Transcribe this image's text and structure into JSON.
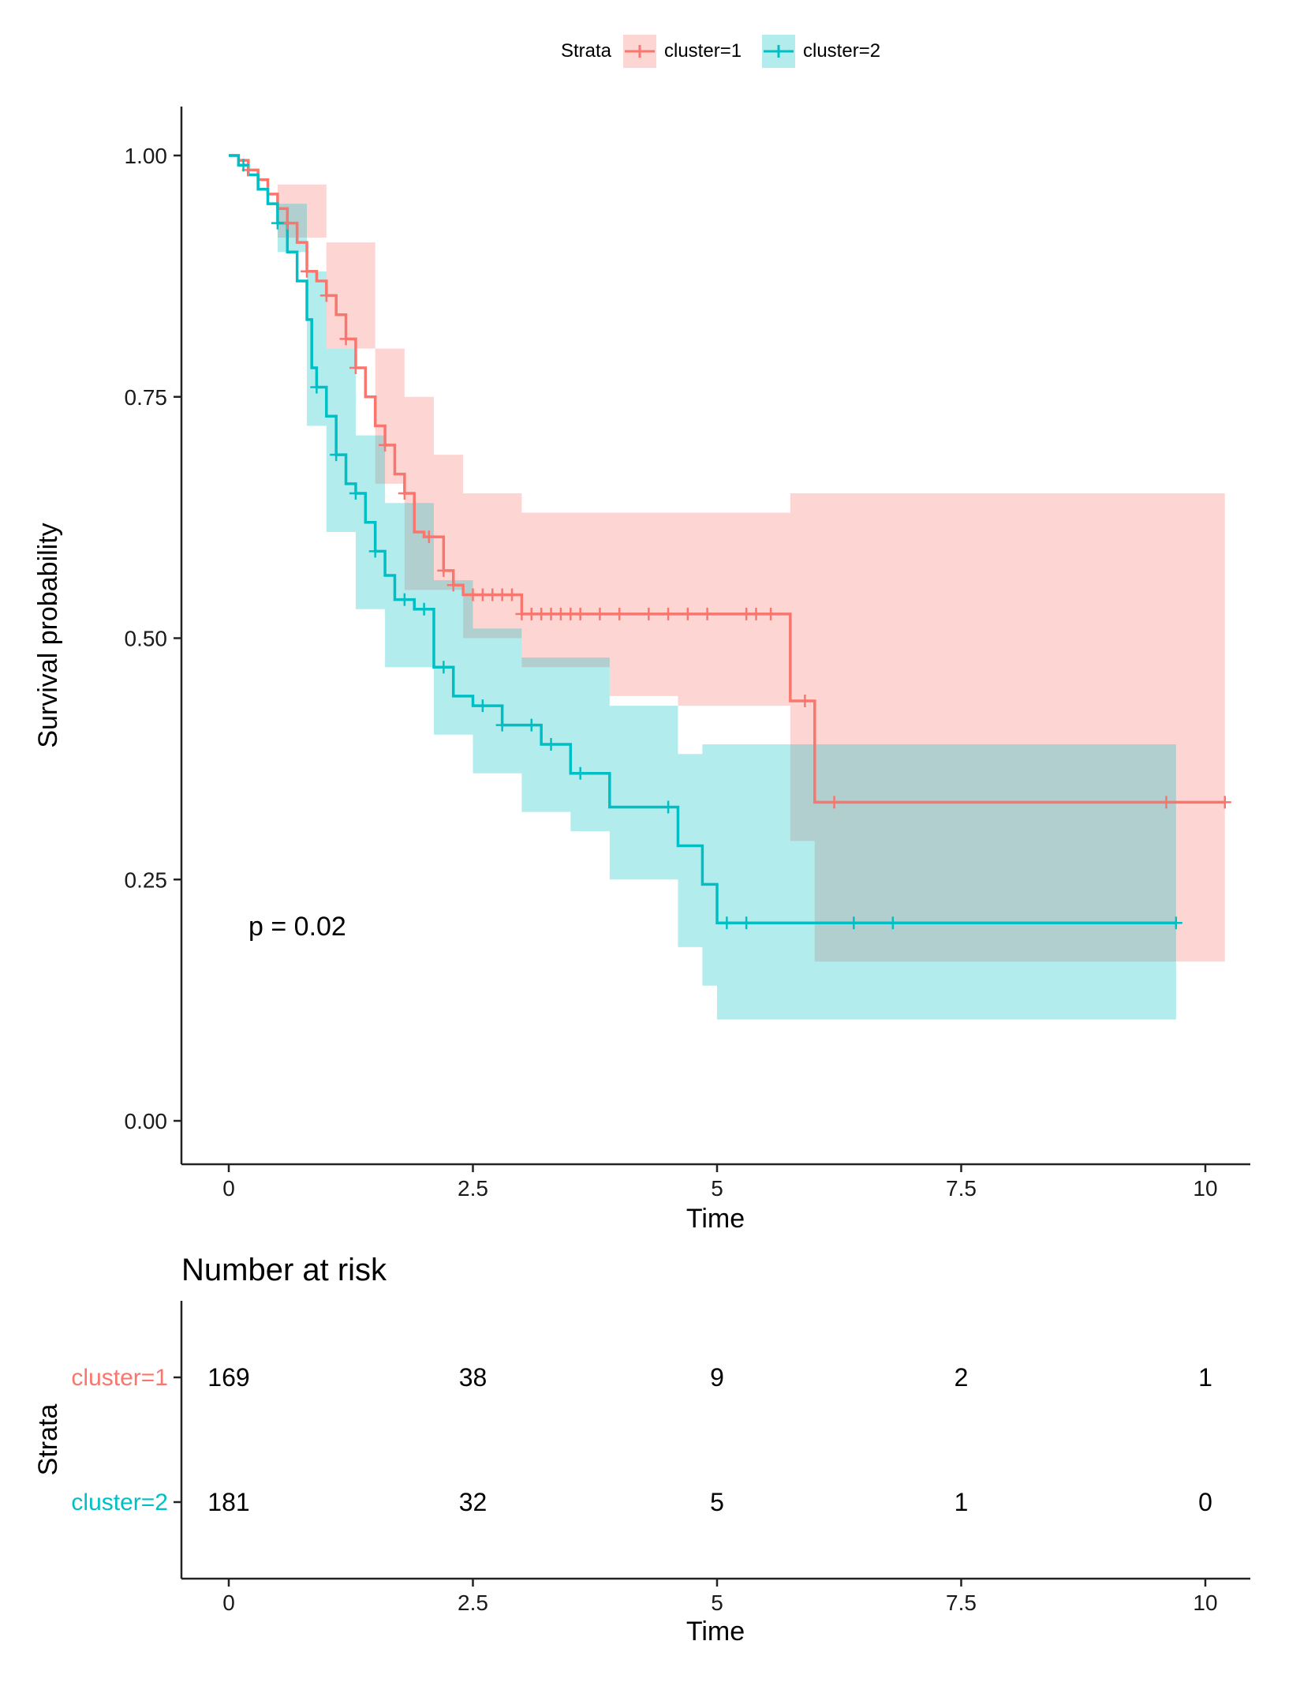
{
  "chart_data": {
    "type": "line",
    "subtype": "kaplan-meier",
    "title": "",
    "xlabel": "Time",
    "ylabel": "Survival probability",
    "xlim": [
      0,
      10.5
    ],
    "ylim": [
      0,
      1.05
    ],
    "x_ticks": [
      0,
      2.5,
      5,
      7.5,
      10
    ],
    "x_tick_labels": [
      "0",
      "2.5",
      "5",
      "7.5",
      "10"
    ],
    "y_ticks": [
      0,
      0.25,
      0.5,
      0.75,
      1.0
    ],
    "y_tick_labels": [
      "0.00",
      "0.25",
      "0.50",
      "0.75",
      "1.00"
    ],
    "grid": false,
    "legend": {
      "position": "top",
      "title": "Strata",
      "entries": [
        "cluster=1",
        "cluster=2"
      ]
    },
    "pvalue_label": "p = 0.02",
    "series": [
      {
        "name": "cluster=1",
        "color": "#F8766D",
        "ci_fill": "#F8766D",
        "steps": [
          [
            0,
            1.0
          ],
          [
            0.1,
            0.995
          ],
          [
            0.2,
            0.985
          ],
          [
            0.3,
            0.975
          ],
          [
            0.4,
            0.96
          ],
          [
            0.5,
            0.945
          ],
          [
            0.6,
            0.93
          ],
          [
            0.7,
            0.91
          ],
          [
            0.8,
            0.88
          ],
          [
            0.9,
            0.87
          ],
          [
            1.0,
            0.855
          ],
          [
            1.1,
            0.835
          ],
          [
            1.2,
            0.81
          ],
          [
            1.3,
            0.78
          ],
          [
            1.4,
            0.75
          ],
          [
            1.5,
            0.72
          ],
          [
            1.6,
            0.7
          ],
          [
            1.7,
            0.67
          ],
          [
            1.8,
            0.65
          ],
          [
            1.9,
            0.61
          ],
          [
            2.0,
            0.605
          ],
          [
            2.2,
            0.57
          ],
          [
            2.3,
            0.555
          ],
          [
            2.4,
            0.545
          ],
          [
            3.0,
            0.525
          ],
          [
            5.75,
            0.435
          ],
          [
            6.0,
            0.33
          ],
          [
            10.2,
            0.33
          ]
        ],
        "ci_upper": [
          [
            0,
            1.0
          ],
          [
            0.5,
            0.97
          ],
          [
            1.0,
            0.91
          ],
          [
            1.5,
            0.8
          ],
          [
            1.8,
            0.75
          ],
          [
            2.1,
            0.69
          ],
          [
            2.4,
            0.65
          ],
          [
            3.0,
            0.63
          ],
          [
            5.75,
            0.65
          ],
          [
            10.2,
            0.655
          ]
        ],
        "ci_lower": [
          [
            0,
            1.0
          ],
          [
            0.5,
            0.915
          ],
          [
            1.0,
            0.8
          ],
          [
            1.5,
            0.66
          ],
          [
            1.8,
            0.55
          ],
          [
            2.4,
            0.5
          ],
          [
            3.0,
            0.47
          ],
          [
            3.9,
            0.44
          ],
          [
            4.6,
            0.43
          ],
          [
            5.75,
            0.29
          ],
          [
            6.0,
            0.165
          ],
          [
            10.2,
            0.165
          ]
        ],
        "censor_times": [
          0.2,
          0.6,
          0.8,
          1.0,
          1.2,
          1.3,
          1.6,
          1.8,
          2.05,
          2.2,
          2.3,
          2.5,
          2.6,
          2.7,
          2.8,
          2.9,
          3.0,
          3.1,
          3.2,
          3.3,
          3.4,
          3.5,
          3.6,
          3.8,
          4.0,
          4.3,
          4.5,
          4.7,
          4.9,
          5.3,
          5.4,
          5.55,
          5.9,
          6.2,
          9.6,
          10.2
        ]
      },
      {
        "name": "cluster=2",
        "color": "#00BFC4",
        "ci_fill": "#00BFC4",
        "steps": [
          [
            0,
            1.0
          ],
          [
            0.1,
            0.99
          ],
          [
            0.2,
            0.98
          ],
          [
            0.3,
            0.965
          ],
          [
            0.4,
            0.95
          ],
          [
            0.5,
            0.93
          ],
          [
            0.6,
            0.9
          ],
          [
            0.7,
            0.87
          ],
          [
            0.8,
            0.83
          ],
          [
            0.85,
            0.78
          ],
          [
            0.9,
            0.76
          ],
          [
            1.0,
            0.73
          ],
          [
            1.1,
            0.69
          ],
          [
            1.2,
            0.66
          ],
          [
            1.3,
            0.65
          ],
          [
            1.4,
            0.62
          ],
          [
            1.5,
            0.59
          ],
          [
            1.6,
            0.565
          ],
          [
            1.7,
            0.54
          ],
          [
            1.9,
            0.53
          ],
          [
            2.1,
            0.47
          ],
          [
            2.3,
            0.44
          ],
          [
            2.5,
            0.43
          ],
          [
            2.8,
            0.41
          ],
          [
            3.2,
            0.39
          ],
          [
            3.5,
            0.36
          ],
          [
            3.9,
            0.325
          ],
          [
            4.6,
            0.285
          ],
          [
            4.85,
            0.245
          ],
          [
            5.0,
            0.205
          ],
          [
            9.7,
            0.205
          ]
        ],
        "ci_upper": [
          [
            0,
            1.0
          ],
          [
            0.5,
            0.95
          ],
          [
            0.8,
            0.88
          ],
          [
            1.0,
            0.8
          ],
          [
            1.3,
            0.71
          ],
          [
            1.6,
            0.64
          ],
          [
            2.1,
            0.56
          ],
          [
            2.5,
            0.51
          ],
          [
            3.0,
            0.48
          ],
          [
            3.9,
            0.43
          ],
          [
            4.6,
            0.38
          ],
          [
            4.85,
            0.39
          ],
          [
            9.7,
            0.39
          ]
        ],
        "ci_lower": [
          [
            0,
            1.0
          ],
          [
            0.5,
            0.9
          ],
          [
            0.8,
            0.72
          ],
          [
            1.0,
            0.61
          ],
          [
            1.3,
            0.53
          ],
          [
            1.6,
            0.47
          ],
          [
            2.1,
            0.4
          ],
          [
            2.5,
            0.36
          ],
          [
            3.0,
            0.32
          ],
          [
            3.5,
            0.3
          ],
          [
            3.9,
            0.25
          ],
          [
            4.6,
            0.18
          ],
          [
            4.85,
            0.14
          ],
          [
            5.0,
            0.105
          ],
          [
            9.7,
            0.105
          ]
        ],
        "censor_times": [
          0.15,
          0.5,
          0.9,
          1.1,
          1.3,
          1.5,
          1.8,
          2.0,
          2.2,
          2.6,
          2.8,
          3.1,
          3.3,
          3.6,
          4.5,
          5.1,
          5.3,
          6.4,
          6.8,
          9.7
        ]
      }
    ],
    "risk_table": {
      "title": "Number at risk",
      "ylabel": "Strata",
      "xlabel": "Time",
      "times": [
        0,
        2.5,
        5,
        7.5,
        10
      ],
      "time_labels": [
        "0",
        "2.5",
        "5",
        "7.5",
        "10"
      ],
      "rows": [
        {
          "label": "cluster=1",
          "color": "#F8766D",
          "values": [
            "169",
            "38",
            "9",
            "2",
            "1"
          ]
        },
        {
          "label": "cluster=2",
          "color": "#00BFC4",
          "values": [
            "181",
            "32",
            "5",
            "1",
            "0"
          ]
        }
      ]
    }
  }
}
